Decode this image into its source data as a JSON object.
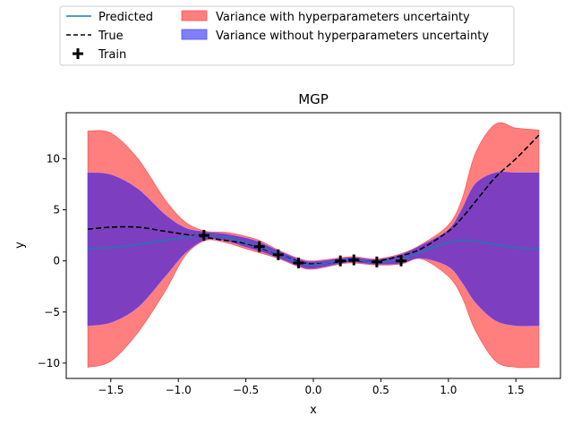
{
  "chart_data": {
    "type": "line",
    "title": "MGP",
    "xlabel": "x",
    "ylabel": "y",
    "xlim": [
      -1.83,
      1.83
    ],
    "ylim": [
      -11.5,
      14.5
    ],
    "xticks": [
      -1.5,
      -1.0,
      -0.5,
      0.0,
      0.5,
      1.0,
      1.5
    ],
    "xtick_labels": [
      "−1.5",
      "−1.0",
      "−0.5",
      "0.0",
      "0.5",
      "1.0",
      "1.5"
    ],
    "yticks": [
      -10,
      -5,
      0,
      5,
      10
    ],
    "ytick_labels": [
      "−10",
      "−5",
      "0",
      "5",
      "10"
    ],
    "grid": false,
    "legend": {
      "placement": "above-plot",
      "entries": [
        {
          "label": "Predicted",
          "kind": "line",
          "color": "#1f77b4"
        },
        {
          "label": "True",
          "kind": "dashed",
          "color": "#000000"
        },
        {
          "label": "Train",
          "kind": "plus",
          "color": "#000000"
        },
        {
          "label": "Variance with hyperparameters uncertainty",
          "kind": "patch",
          "color": "#ff7f7f"
        },
        {
          "label": "Variance without hyperparameters uncertainty",
          "kind": "patch",
          "color": "#7f7fff"
        }
      ]
    },
    "x": [
      -1.67,
      -1.5,
      -1.3,
      -1.1,
      -0.95,
      -0.8,
      -0.65,
      -0.5,
      -0.4,
      -0.25,
      -0.1,
      0.0,
      0.2,
      0.3,
      0.47,
      0.65,
      0.8,
      1.0,
      1.1,
      1.2,
      1.35,
      1.5,
      1.67
    ],
    "series": [
      {
        "name": "Predicted",
        "color": "#1f77b4",
        "values": [
          1.2,
          1.3,
          1.6,
          2.0,
          2.3,
          2.5,
          2.3,
          1.8,
          1.4,
          0.6,
          -0.2,
          -0.4,
          0.0,
          0.1,
          -0.1,
          0.2,
          0.9,
          1.8,
          2.0,
          1.9,
          1.6,
          1.3,
          1.2
        ]
      },
      {
        "name": "True",
        "color": "#000000",
        "values": [
          3.1,
          3.3,
          3.3,
          2.9,
          2.6,
          2.3,
          2.0,
          1.7,
          1.3,
          0.6,
          -0.1,
          -0.3,
          -0.1,
          0.0,
          0.0,
          0.5,
          1.2,
          2.9,
          4.2,
          5.8,
          8.2,
          10.0,
          12.3
        ]
      }
    ],
    "bands": [
      {
        "name": "Variance with hyperparameters uncertainty",
        "color": "#ff7f7f",
        "lower": [
          -10.4,
          -9.8,
          -7.0,
          -3.0,
          0.5,
          2.0,
          1.8,
          1.2,
          0.8,
          0.2,
          -0.6,
          -0.8,
          -0.3,
          -0.2,
          -0.4,
          -0.3,
          0.2,
          -1.5,
          -3.5,
          -6.8,
          -9.8,
          -10.4,
          -10.4
        ],
        "upper": [
          12.7,
          12.5,
          10.0,
          6.0,
          3.8,
          2.9,
          2.8,
          2.4,
          2.0,
          1.0,
          0.2,
          0.0,
          0.3,
          0.4,
          0.2,
          0.7,
          1.6,
          3.5,
          6.0,
          10.5,
          13.4,
          13.0,
          12.8
        ]
      },
      {
        "name": "Variance without hyperparameters uncertainty",
        "color": "#7f7fff",
        "lower": [
          -6.3,
          -6.0,
          -4.5,
          -1.5,
          0.8,
          2.1,
          2.0,
          1.4,
          1.0,
          0.3,
          -0.5,
          -0.7,
          -0.2,
          -0.1,
          -0.3,
          -0.2,
          0.3,
          -0.5,
          -2.0,
          -4.0,
          -5.8,
          -6.3,
          -6.3
        ],
        "upper": [
          8.6,
          8.4,
          7.0,
          4.5,
          3.2,
          2.8,
          2.6,
          2.2,
          1.8,
          0.9,
          0.1,
          -0.1,
          0.2,
          0.3,
          0.1,
          0.6,
          1.5,
          3.0,
          5.0,
          7.5,
          8.6,
          8.6,
          8.6
        ]
      }
    ],
    "train_points": {
      "name": "Train",
      "x": [
        -0.81,
        -0.4,
        -0.26,
        -0.11,
        0.2,
        0.3,
        0.47,
        0.65
      ],
      "y": [
        2.5,
        1.4,
        0.6,
        -0.2,
        0.0,
        0.1,
        -0.1,
        0.0
      ]
    }
  }
}
